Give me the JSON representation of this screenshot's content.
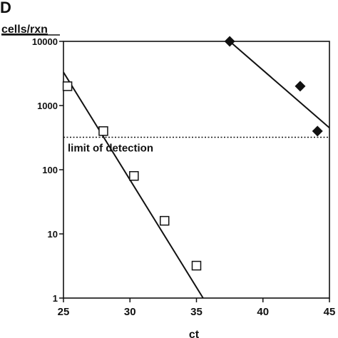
{
  "panel_label": "D",
  "chart_data": {
    "type": "scatter",
    "ylabel": "cells/rxn",
    "xlabel": "ct",
    "xlim": [
      25,
      45
    ],
    "ylim": [
      1,
      10000
    ],
    "yscale": "log",
    "xticks": [
      25,
      30,
      35,
      40,
      45
    ],
    "xtick_labels": [
      "25",
      "30",
      "35",
      "40",
      "45"
    ],
    "yticks": [
      1,
      10,
      100,
      1000,
      10000
    ],
    "ytick_labels": [
      "1",
      "10",
      "100",
      "1000",
      "10000"
    ],
    "grid": false,
    "series": [
      {
        "marker": "open-square",
        "color": "#111111",
        "points": [
          {
            "x": 25.3,
            "y": 2000
          },
          {
            "x": 28.0,
            "y": 400
          },
          {
            "x": 30.3,
            "y": 80
          },
          {
            "x": 32.6,
            "y": 16
          },
          {
            "x": 35.0,
            "y": 3.2
          }
        ],
        "fit_line": {
          "x": [
            25.0,
            35.5
          ],
          "y": [
            3300,
            1
          ]
        }
      },
      {
        "marker": "filled-diamond",
        "color": "#111111",
        "points": [
          {
            "x": 37.5,
            "y": 10000
          },
          {
            "x": 42.8,
            "y": 2000
          },
          {
            "x": 44.1,
            "y": 400
          }
        ],
        "fit_line": {
          "x": [
            37.5,
            45.0
          ],
          "y": [
            10000,
            450
          ]
        }
      }
    ],
    "reference_line": {
      "y": 320,
      "style": "dotted",
      "label": "limit of detection"
    }
  }
}
